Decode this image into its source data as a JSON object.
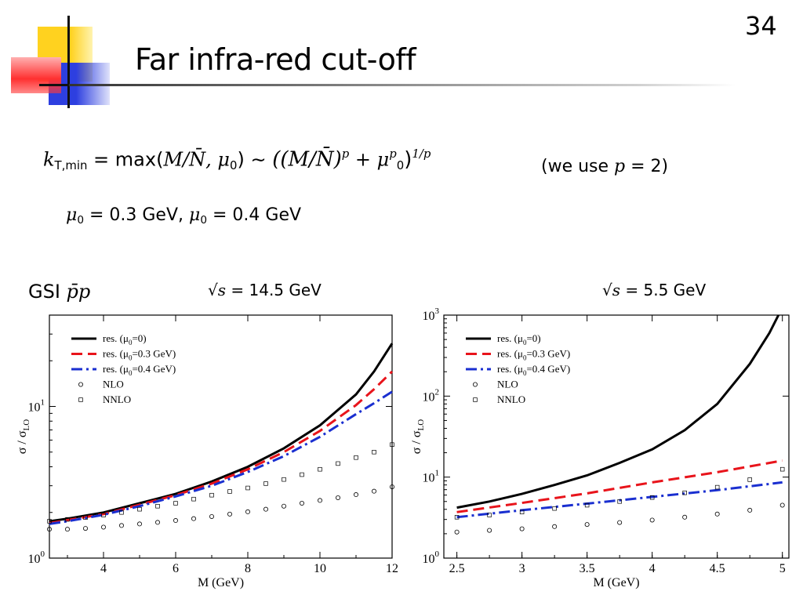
{
  "slide": {
    "title": "Far infra-red cut-off",
    "page_number": "34"
  },
  "formula": {
    "k": "k",
    "k_sub": "T,min",
    "eq": " = ",
    "max_text": "max(",
    "args": "M/N̄, μ",
    "arg_sub": "0",
    "close": ")",
    "sim": "  ∼  ",
    "rhs_open": "((M/N̄)",
    "p1": "p",
    "plus": " + μ",
    "mu_sup": "p",
    "mu_sub": "0",
    "rhs_close": ")",
    "outer_exp": "1/p"
  },
  "note": {
    "pre": "(we use ",
    "p": "p",
    "post": " = 2)"
  },
  "mu_values": {
    "mu1": "μ",
    "sub1": "0",
    "val1": " = 0.3 GeV,  ",
    "mu2": "μ",
    "sub2": "0",
    "val2": " = 0.4 GeV"
  },
  "labels": {
    "gsi": "GSI ",
    "pp": "p̄p",
    "left_energy_pre": "√s",
    "left_energy_val": " = 14.5 GeV",
    "right_energy_pre": "√s",
    "right_energy_val": " = 5.5 GeV"
  },
  "colors": {
    "res0": "#000000",
    "res03": "#e8141b",
    "res04": "#1a2fd0",
    "deco_yellow": "#ffd21f",
    "deco_red": "#ff3a3a",
    "deco_blue": "#2d3fe0",
    "title_rule": "#555555"
  },
  "chart_data": [
    {
      "type": "line",
      "xlabel": "M (GeV)",
      "ylabel": "σ / σ_LO",
      "xlim": [
        2.5,
        12
      ],
      "ylim": [
        1,
        40
      ],
      "y_scale": "log",
      "x_ticks": [
        "4",
        "6",
        "8",
        "10",
        "12"
      ],
      "y_ticks": [
        "10^0",
        "10^1"
      ],
      "legend_position": "top-left",
      "legend": [
        "res. (μ0=0)",
        "res. (μ0=0.3 GeV)",
        "res. (μ0=0.4 GeV)",
        "NLO",
        "NNLO"
      ],
      "series": [
        {
          "name": "res. (μ0=0)",
          "style": "solid",
          "x": [
            2.5,
            3,
            4,
            5,
            6,
            7,
            8,
            9,
            10,
            11,
            11.5,
            12
          ],
          "y": [
            1.75,
            1.82,
            2.0,
            2.3,
            2.65,
            3.2,
            4.0,
            5.3,
            7.5,
            12.0,
            17.0,
            26.0
          ]
        },
        {
          "name": "res. (μ0=0.3 GeV)",
          "style": "dashed",
          "x": [
            2.5,
            3,
            4,
            5,
            6,
            7,
            8,
            9,
            10,
            11,
            11.5,
            12
          ],
          "y": [
            1.7,
            1.78,
            1.95,
            2.25,
            2.6,
            3.1,
            3.85,
            5.0,
            6.9,
            10.2,
            13.0,
            17.0
          ]
        },
        {
          "name": "res. (μ0=0.4 GeV)",
          "style": "dash-dot",
          "x": [
            2.5,
            3,
            4,
            5,
            6,
            7,
            8,
            9,
            10,
            11,
            11.5,
            12
          ],
          "y": [
            1.68,
            1.75,
            1.93,
            2.2,
            2.55,
            3.0,
            3.7,
            4.7,
            6.3,
            8.9,
            10.5,
            12.5
          ]
        },
        {
          "name": "NLO",
          "style": "circle",
          "x": [
            2.5,
            3,
            3.5,
            4,
            4.5,
            5,
            5.5,
            6,
            6.5,
            7,
            7.5,
            8,
            8.5,
            9,
            9.5,
            10,
            10.5,
            11,
            11.5,
            12
          ],
          "y": [
            1.55,
            1.55,
            1.57,
            1.6,
            1.64,
            1.68,
            1.72,
            1.77,
            1.82,
            1.88,
            1.95,
            2.02,
            2.1,
            2.2,
            2.3,
            2.4,
            2.5,
            2.62,
            2.76,
            2.95
          ]
        },
        {
          "name": "NNLO",
          "style": "square",
          "x": [
            2.5,
            3,
            3.5,
            4,
            4.5,
            5,
            5.5,
            6,
            6.5,
            7,
            7.5,
            8,
            8.5,
            9,
            9.5,
            10,
            10.5,
            11,
            11.5,
            12
          ],
          "y": [
            1.75,
            1.8,
            1.85,
            1.92,
            2.0,
            2.1,
            2.2,
            2.3,
            2.45,
            2.6,
            2.75,
            2.9,
            3.1,
            3.3,
            3.55,
            3.85,
            4.2,
            4.6,
            5.0,
            5.6
          ]
        }
      ]
    },
    {
      "type": "line",
      "xlabel": "M (GeV)",
      "ylabel": "σ / σ_LO",
      "xlim": [
        2.4,
        5.05
      ],
      "ylim": [
        1,
        1000
      ],
      "y_scale": "log",
      "x_ticks": [
        "2.5",
        "3",
        "3.5",
        "4",
        "4.5",
        "5"
      ],
      "y_ticks": [
        "10^0",
        "10^1",
        "10^2",
        "10^3"
      ],
      "legend_position": "top-left",
      "legend": [
        "res. (μ0=0)",
        "res. (μ0=0.3 GeV)",
        "res. (μ0=0.4 GeV)",
        "NLO",
        "NNLO"
      ],
      "series": [
        {
          "name": "res. (μ0=0)",
          "style": "solid",
          "x": [
            2.5,
            2.75,
            3,
            3.25,
            3.5,
            3.75,
            4,
            4.25,
            4.5,
            4.75,
            4.9,
            4.97
          ],
          "y": [
            4.2,
            5.0,
            6.2,
            8.0,
            10.5,
            15.0,
            22.0,
            38.0,
            80.0,
            250.0,
            600.0,
            1000.0
          ]
        },
        {
          "name": "res. (μ0=0.3 GeV)",
          "style": "dashed",
          "x": [
            2.5,
            3,
            3.5,
            4,
            4.5,
            5
          ],
          "y": [
            3.7,
            4.8,
            6.3,
            8.6,
            11.5,
            16.0
          ]
        },
        {
          "name": "res. (μ0=0.4 GeV)",
          "style": "dash-dot",
          "x": [
            2.5,
            3,
            3.5,
            4,
            4.5,
            5
          ],
          "y": [
            3.2,
            3.9,
            4.7,
            5.7,
            6.9,
            8.6
          ]
        },
        {
          "name": "NLO",
          "style": "circle",
          "x": [
            2.5,
            2.75,
            3,
            3.25,
            3.5,
            3.75,
            4,
            4.25,
            4.5,
            4.75,
            5
          ],
          "y": [
            2.1,
            2.2,
            2.3,
            2.45,
            2.6,
            2.75,
            2.95,
            3.2,
            3.5,
            3.9,
            4.5
          ]
        },
        {
          "name": "NNLO",
          "style": "square",
          "x": [
            2.5,
            2.75,
            3,
            3.25,
            3.5,
            3.75,
            4,
            4.25,
            4.5,
            4.75,
            5
          ],
          "y": [
            3.2,
            3.4,
            3.7,
            4.1,
            4.5,
            5.0,
            5.6,
            6.4,
            7.5,
            9.3,
            12.5
          ]
        }
      ]
    }
  ]
}
